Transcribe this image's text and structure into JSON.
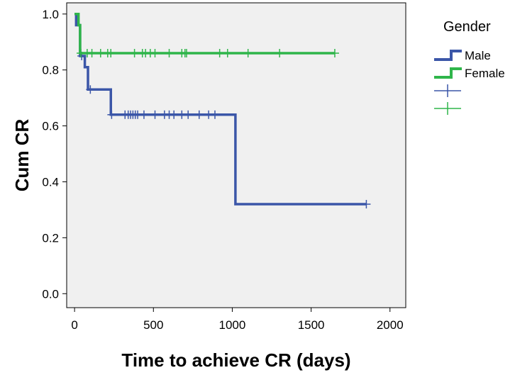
{
  "chart_data": {
    "type": "line",
    "subtype": "kaplan-meier step",
    "xlabel": "Time to achieve CR (days)",
    "ylabel": "Cum CR",
    "xlim": [
      -50,
      2100
    ],
    "ylim": [
      -0.05,
      1.04
    ],
    "x_ticks": [
      "0",
      "500",
      "1000",
      "1500",
      "2000"
    ],
    "y_ticks": [
      "0.0",
      "0.2",
      "0.4",
      "0.6",
      "0.8",
      "1.0"
    ],
    "grid": false,
    "plot_background": "#f0f0f0",
    "legend": {
      "title": "Gender",
      "placement": "right-top",
      "entries": [
        "Male",
        "Female",
        "",
        ""
      ]
    },
    "series": [
      {
        "name": "Male",
        "color": "#3b56a8",
        "step_points": [
          [
            0,
            1.0
          ],
          [
            10,
            0.96
          ],
          [
            35,
            0.85
          ],
          [
            65,
            0.81
          ],
          [
            85,
            0.73
          ],
          [
            230,
            0.64
          ],
          [
            1020,
            0.32
          ],
          [
            1850,
            0.32
          ]
        ],
        "censored_x": [
          45,
          100,
          235,
          320,
          340,
          355,
          370,
          385,
          400,
          440,
          510,
          570,
          600,
          630,
          680,
          720,
          790,
          850,
          890,
          1850
        ]
      },
      {
        "name": "Female",
        "color": "#2fb54a",
        "step_points": [
          [
            0,
            1.0
          ],
          [
            25,
            0.96
          ],
          [
            35,
            0.86
          ],
          [
            1650,
            0.86
          ]
        ],
        "censored_x": [
          40,
          80,
          110,
          165,
          210,
          230,
          380,
          430,
          450,
          480,
          510,
          600,
          680,
          700,
          710,
          920,
          970,
          1100,
          1300,
          1650
        ]
      }
    ]
  }
}
